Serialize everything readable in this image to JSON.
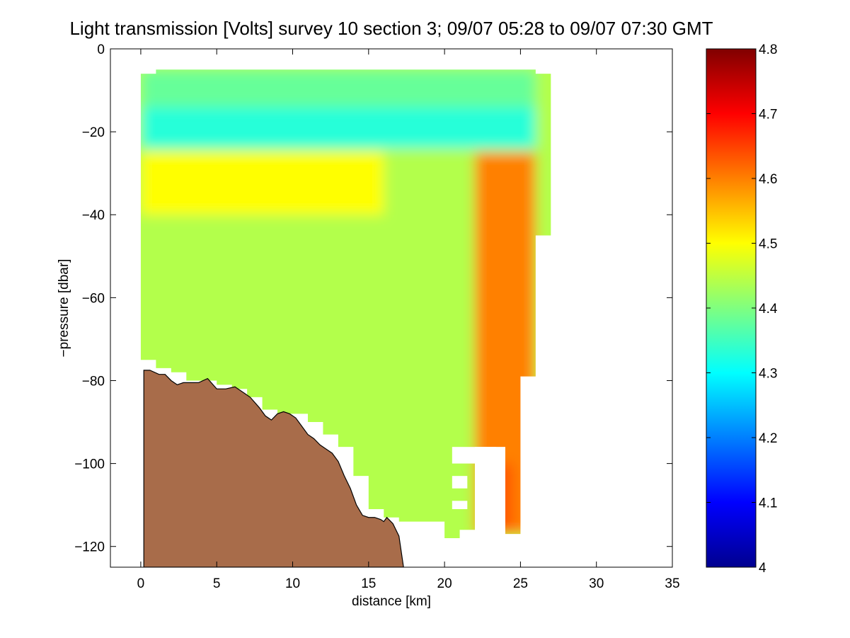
{
  "chart_data": {
    "type": "heatmap",
    "title": "Light transmission [Volts] survey 10 section 3; 09/07 05:28 to 09/07 07:30 GMT",
    "xlabel": "distance [km]",
    "ylabel": "−pressure [dbar]",
    "xlim": [
      -2,
      35
    ],
    "ylim": [
      -125,
      0
    ],
    "x_ticks": [
      0,
      5,
      10,
      15,
      20,
      25,
      30,
      35
    ],
    "x_tick_labels": [
      "0",
      "5",
      "10",
      "15",
      "20",
      "25",
      "30",
      "35"
    ],
    "y_ticks": [
      0,
      -20,
      -40,
      -60,
      -80,
      -100,
      -120
    ],
    "y_tick_labels": [
      "0",
      "−20",
      "−40",
      "−60",
      "−80",
      "−100",
      "−120"
    ],
    "colorbar": {
      "colormap": "jet",
      "range": [
        4.0,
        4.8
      ],
      "ticks": [
        4.0,
        4.1,
        4.2,
        4.3,
        4.4,
        4.5,
        4.6,
        4.7,
        4.8
      ],
      "tick_labels": [
        "4",
        "4.1",
        "4.2",
        "4.3",
        "4.4",
        "4.5",
        "4.6",
        "4.7",
        "4.8"
      ]
    },
    "field_description_units": "Volts",
    "columns": [
      {
        "x": 0,
        "top": -6,
        "bottom": -75
      },
      {
        "x": 1,
        "top": -5,
        "bottom": -77
      },
      {
        "x": 2,
        "top": -5,
        "bottom": -78
      },
      {
        "x": 3,
        "top": -5,
        "bottom": -80
      },
      {
        "x": 4,
        "top": -5,
        "bottom": -80
      },
      {
        "x": 5,
        "top": -5,
        "bottom": -81
      },
      {
        "x": 6,
        "top": -5,
        "bottom": -82
      },
      {
        "x": 7,
        "top": -5,
        "bottom": -84
      },
      {
        "x": 8,
        "top": -5,
        "bottom": -87
      },
      {
        "x": 9,
        "top": -5,
        "bottom": -88
      },
      {
        "x": 10,
        "top": -5,
        "bottom": -88
      },
      {
        "x": 11,
        "top": -5,
        "bottom": -90
      },
      {
        "x": 12,
        "top": -5,
        "bottom": -93
      },
      {
        "x": 13,
        "top": -5,
        "bottom": -96
      },
      {
        "x": 14,
        "top": -5,
        "bottom": -103
      },
      {
        "x": 15,
        "top": -5,
        "bottom": -111
      },
      {
        "x": 16,
        "top": -5,
        "bottom": -113
      },
      {
        "x": 17,
        "top": -5,
        "bottom": -114
      },
      {
        "x": 18,
        "top": -5,
        "bottom": -114
      },
      {
        "x": 19,
        "top": -5,
        "bottom": -114
      },
      {
        "x": 20,
        "top": -5,
        "bottom": -118
      },
      {
        "x": 21,
        "top": -5,
        "bottom": -116
      },
      {
        "x": 22,
        "top": -5,
        "bottom": -96
      },
      {
        "x": 23,
        "top": -5,
        "bottom": -96
      },
      {
        "x": 24,
        "top": -5,
        "bottom": -117
      },
      {
        "x": 25,
        "top": -5,
        "bottom": -79
      },
      {
        "x": 26,
        "top": -6,
        "bottom": -45
      }
    ],
    "gaps": [
      {
        "x_range": [
          20.5,
          22
        ],
        "y_range": [
          -100,
          -96
        ]
      },
      {
        "x_range": [
          20.5,
          21.5
        ],
        "y_range": [
          -106,
          -103
        ]
      },
      {
        "x_range": [
          20.5,
          21.5
        ],
        "y_range": [
          -111,
          -109
        ]
      },
      {
        "x_range": [
          22,
          23.4
        ],
        "y_range": [
          -117,
          -96
        ]
      }
    ],
    "features": [
      {
        "name": "near-surface minimum",
        "x_range": [
          0,
          26
        ],
        "depth_range": [
          -24,
          -14
        ],
        "value": 4.33
      },
      {
        "name": "upper surface layer",
        "x_range": [
          0,
          26
        ],
        "depth_range": [
          -14,
          -5
        ],
        "value": 4.38
      },
      {
        "name": "interior field",
        "x_range": [
          2,
          20
        ],
        "depth_range": [
          -75,
          -30
        ],
        "value": 4.44
      },
      {
        "name": "subsurface band",
        "x_range": [
          0,
          16
        ],
        "depth_range": [
          -40,
          -25
        ],
        "value": 4.5
      },
      {
        "name": "offshore high",
        "x_range": [
          22,
          26
        ],
        "depth_range": [
          -117,
          -25
        ],
        "value": 4.6
      },
      {
        "name": "deep-east core",
        "x_range": [
          23,
          24.5
        ],
        "depth_range": [
          -117,
          -100
        ],
        "value": 4.63
      }
    ],
    "seabed": {
      "fill_color": "#a86c4a",
      "x": [
        0.2,
        0.6,
        1.2,
        1.6,
        2.0,
        2.4,
        2.8,
        3.2,
        3.8,
        4.4,
        5.0,
        5.6,
        6.2,
        6.8,
        7.2,
        7.8,
        8.2,
        8.6,
        9.0,
        9.4,
        9.8,
        10.2,
        10.6,
        11.0,
        11.4,
        11.8,
        12.2,
        12.6,
        13.0,
        13.4,
        13.8,
        14.2,
        14.6,
        15.0,
        15.4,
        15.8,
        16.0,
        16.2,
        16.6,
        17.0,
        17.3
      ],
      "y": [
        -77.5,
        -77.5,
        -78.5,
        -78.5,
        -80,
        -81,
        -80.5,
        -80.5,
        -80.5,
        -79.5,
        -82,
        -82,
        -81.5,
        -83,
        -84,
        -86.5,
        -88.5,
        -89.5,
        -88,
        -87.5,
        -88,
        -89,
        -91,
        -93,
        -94,
        -95.5,
        -96.5,
        -97.5,
        -99.5,
        -103,
        -106,
        -110,
        -112.5,
        -113,
        -113,
        -113.5,
        -114,
        -113,
        -114.5,
        -117.5,
        -125
      ]
    }
  }
}
